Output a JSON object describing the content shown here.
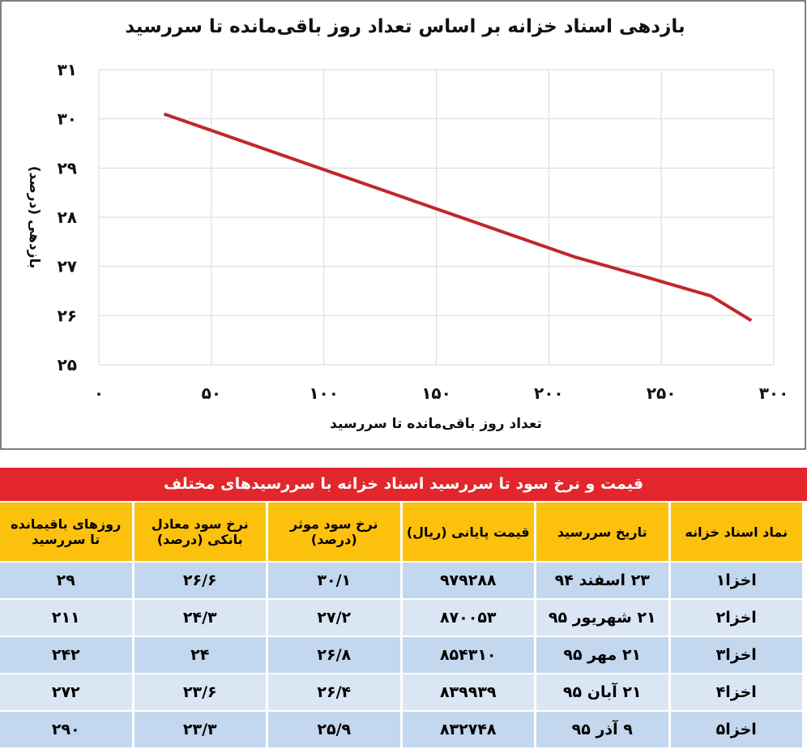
{
  "chart_data": {
    "type": "line",
    "title": "بازدهی اسناد خزانه بر اساس تعداد روز باقی‌مانده تا سررسید",
    "x_label": "تعداد روز باقی‌مانده تا سررسید",
    "y_label": "بازدهی (درصد)",
    "x": [
      29,
      211,
      242,
      272,
      290
    ],
    "series": [
      {
        "color": "#c0272d",
        "values": [
          30.1,
          27.2,
          26.8,
          26.4,
          25.9
        ]
      }
    ],
    "xlim": [
      0,
      300
    ],
    "ylim": [
      25,
      31
    ],
    "xticks": [
      {
        "value": 0,
        "label": "۰"
      },
      {
        "value": 50,
        "label": "۵۰"
      },
      {
        "value": 100,
        "label": "۱۰۰"
      },
      {
        "value": 150,
        "label": "۱۵۰"
      },
      {
        "value": 200,
        "label": "۲۰۰"
      },
      {
        "value": 250,
        "label": "۲۵۰"
      },
      {
        "value": 300,
        "label": "۳۰۰"
      }
    ],
    "yticks": [
      {
        "value": 25,
        "label": "۲۵"
      },
      {
        "value": 26,
        "label": "۲۶"
      },
      {
        "value": 27,
        "label": "۲۷"
      },
      {
        "value": 28,
        "label": "۲۸"
      },
      {
        "value": 29,
        "label": "۲۹"
      },
      {
        "value": 30,
        "label": "۳۰"
      },
      {
        "value": 31,
        "label": "۳۱"
      }
    ],
    "grid": true
  },
  "table": {
    "title": "قیمت و نرخ سود تا سررسید اسناد خزانه با سررسیدهای مختلف",
    "headers": [
      "نماد اسناد خزانه",
      "تاریخ سررسید",
      "قیمت پایانی (ریال)",
      "نرخ سود موثر\n(درصد)",
      "نرخ سود معادل\nبانکی (درصد)",
      "روزهای باقیمانده\nتا سررسید"
    ],
    "rows": [
      [
        "اخزا۱",
        "۲۳ اسفند ۹۴",
        "۹۷۹۲۸۸",
        "۳۰/۱",
        "۲۶/۶",
        "۲۹"
      ],
      [
        "اخزا۲",
        "۲۱ شهریور ۹۵",
        "۸۷۰۰۵۳",
        "۲۷/۲",
        "۲۴/۳",
        "۲۱۱"
      ],
      [
        "اخزا۳",
        "۲۱ مهر ۹۵",
        "۸۵۴۳۱۰",
        "۲۶/۸",
        "۲۴",
        "۲۴۲"
      ],
      [
        "اخزا۴",
        "۲۱ آبان ۹۵",
        "۸۳۹۹۳۹",
        "۲۶/۴",
        "۲۳/۶",
        "۲۷۲"
      ],
      [
        "اخزا۵",
        "۹ آذر ۹۵",
        "۸۳۲۷۴۸",
        "۲۵/۹",
        "۲۳/۳",
        "۲۹۰"
      ]
    ]
  }
}
